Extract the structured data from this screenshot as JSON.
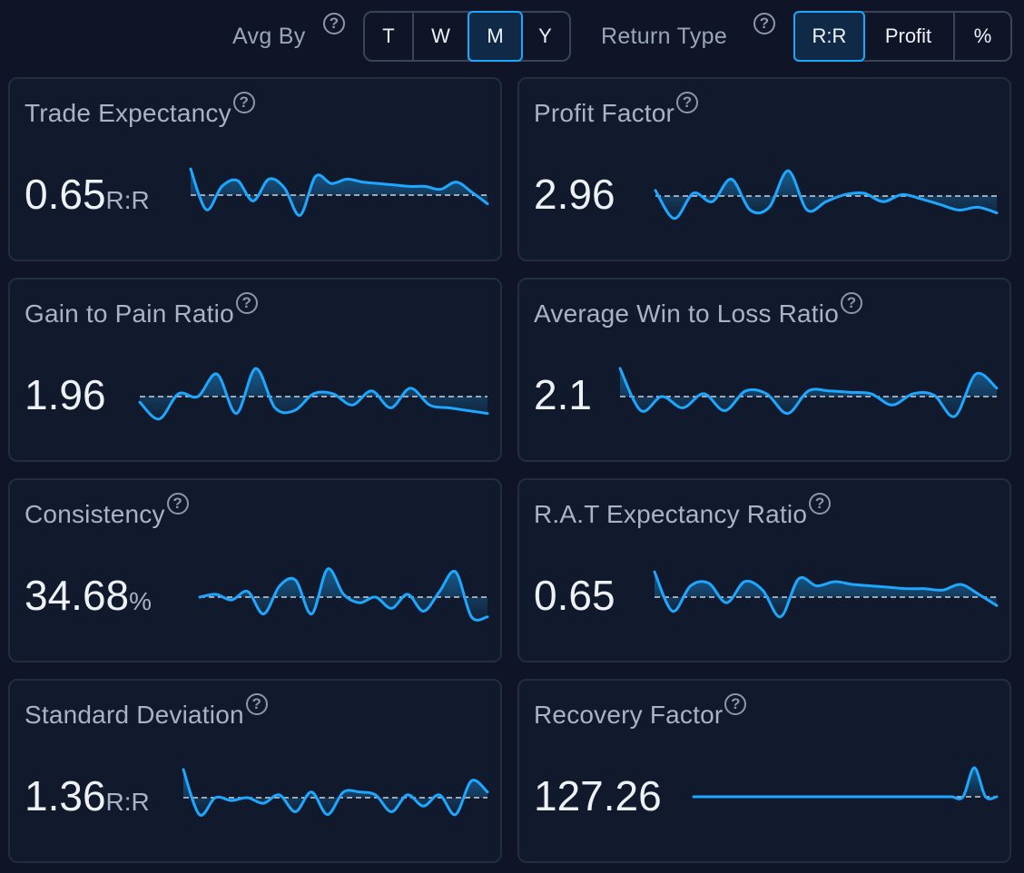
{
  "toolbar": {
    "avg_by_label": "Avg By",
    "avg_by_options": [
      "T",
      "W",
      "M",
      "Y"
    ],
    "avg_by_selected": "M",
    "return_type_label": "Return Type",
    "return_type_options": [
      "R:R",
      "Profit",
      "%"
    ],
    "return_type_selected": "R:R",
    "help_glyph": "?"
  },
  "colors": {
    "accent": "#1ea7ff",
    "background": "#0f1526",
    "card": "#111a2c"
  },
  "cards": [
    {
      "title": "Trade Expectancy",
      "value": "0.65",
      "unit": "R:R",
      "trend": [
        0.9,
        -0.5,
        0.3,
        0.5,
        -0.2,
        0.55,
        0.25,
        -0.7,
        0.65,
        0.4,
        0.55,
        0.45,
        0.4,
        0.35,
        0.3,
        0.3,
        0.2,
        0.45,
        0.1,
        -0.3
      ]
    },
    {
      "title": "Profit Factor",
      "value": "2.96",
      "unit": "",
      "trend": [
        0.2,
        -0.8,
        0.1,
        -0.2,
        0.6,
        -0.5,
        -0.4,
        0.9,
        -0.5,
        -0.2,
        0.05,
        0.1,
        -0.2,
        0.05,
        -0.1,
        -0.3,
        -0.5,
        -0.4,
        -0.6
      ]
    },
    {
      "title": "Gain to Pain Ratio",
      "value": "1.96",
      "unit": "",
      "trend": [
        -0.2,
        -0.8,
        0.1,
        0.0,
        0.8,
        -0.6,
        1.0,
        -0.4,
        -0.5,
        0.1,
        0.1,
        -0.3,
        0.2,
        -0.4,
        0.3,
        -0.3,
        -0.4,
        -0.5,
        -0.6
      ]
    },
    {
      "title": "Average Win to Loss Ratio",
      "value": "2.1",
      "unit": "",
      "trend": [
        1.0,
        -0.5,
        0.0,
        -0.4,
        0.1,
        -0.5,
        0.2,
        0.1,
        -0.6,
        0.2,
        0.2,
        0.15,
        0.1,
        -0.3,
        0.1,
        0.05,
        -0.7,
        0.8,
        0.3
      ]
    },
    {
      "title": "Consistency",
      "value": "34.68",
      "unit": "%",
      "trend": [
        0.0,
        0.1,
        -0.1,
        0.2,
        -0.6,
        0.4,
        0.6,
        -0.6,
        1.0,
        0.1,
        -0.2,
        0.0,
        -0.4,
        0.1,
        -0.5,
        0.2,
        0.9,
        -0.7,
        -0.7
      ]
    },
    {
      "title": "R.A.T Expectancy Ratio",
      "value": "0.65",
      "unit": "",
      "trend": [
        0.9,
        -0.5,
        0.4,
        0.5,
        -0.2,
        0.55,
        0.25,
        -0.7,
        0.65,
        0.4,
        0.55,
        0.45,
        0.4,
        0.35,
        0.3,
        0.3,
        0.25,
        0.45,
        0.1,
        -0.3
      ]
    },
    {
      "title": "Standard Deviation",
      "value": "1.36",
      "unit": "R:R",
      "trend": [
        1.0,
        -0.6,
        0.0,
        -0.1,
        0.0,
        -0.2,
        0.1,
        -0.5,
        0.2,
        -0.6,
        0.2,
        0.2,
        0.1,
        -0.5,
        0.1,
        -0.3,
        0.1,
        -0.6,
        0.6,
        0.2
      ]
    },
    {
      "title": "Recovery Factor",
      "value": "127.26",
      "unit": "",
      "trend": [
        0,
        0,
        0,
        0,
        0,
        0,
        0,
        0,
        0,
        0,
        0,
        0,
        0,
        0,
        0,
        0,
        0,
        0,
        0,
        0,
        0,
        0,
        0,
        0,
        0,
        1.0,
        0,
        0
      ]
    }
  ]
}
